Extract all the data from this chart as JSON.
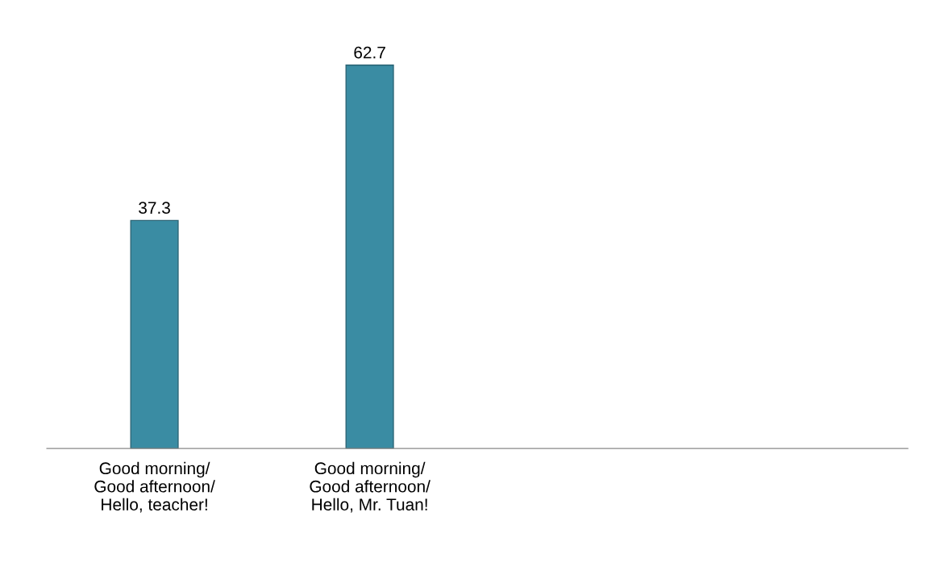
{
  "chart_data": {
    "type": "bar",
    "categories": [
      "Good morning/\nGood afternoon/\nHello, teacher!",
      "Good morning/\nGood afternoon/\nHello, Mr. Tuan!",
      null,
      null
    ],
    "values": [
      37.3,
      62.7,
      null,
      null
    ],
    "color": "#3a8ca3",
    "data_labels": true
  }
}
